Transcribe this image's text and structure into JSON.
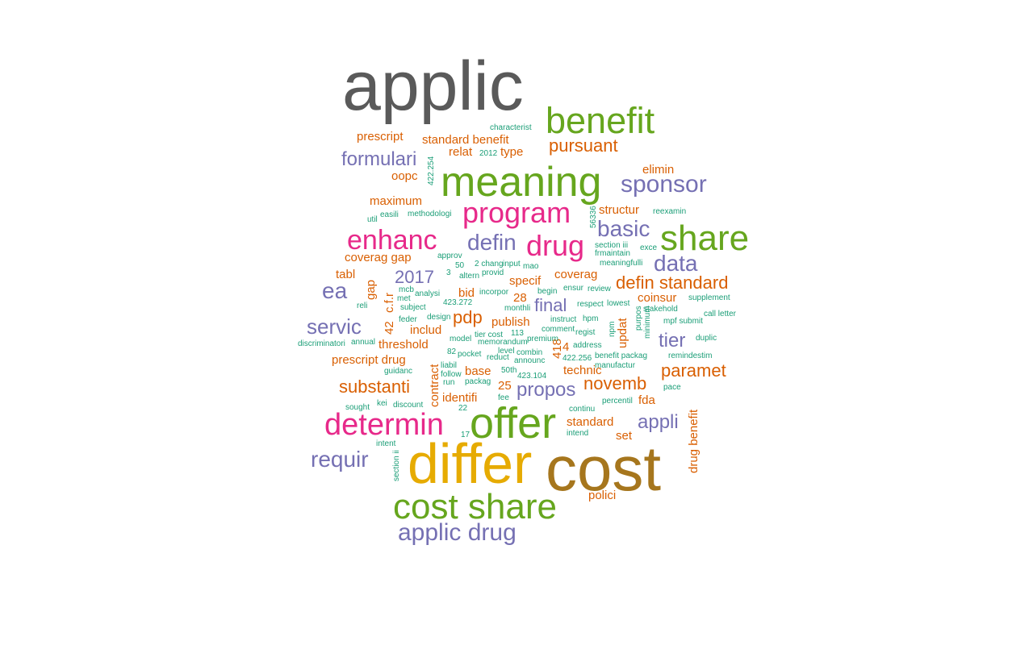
{
  "chart_data": {
    "type": "wordcloud",
    "palette": {
      "gray": "#5a5a5a",
      "olive": "#a6761d",
      "gold": "#e6ab02",
      "green": "#66a61e",
      "pink": "#e7298a",
      "purple": "#7570b3",
      "orange": "#d95f02",
      "teal": "#1b9e77"
    },
    "words": [
      {
        "text": "applic",
        "color": "gray",
        "weight": 96
      },
      {
        "text": "cost",
        "color": "olive",
        "weight": 90
      },
      {
        "text": "differ",
        "color": "gold",
        "weight": 86
      },
      {
        "text": "offer",
        "color": "green",
        "weight": 64
      },
      {
        "text": "meaning",
        "color": "green",
        "weight": 62
      },
      {
        "text": "cost share",
        "color": "green",
        "weight": 52
      },
      {
        "text": "benefit",
        "color": "green",
        "weight": 50
      },
      {
        "text": "share",
        "color": "green",
        "weight": 50
      },
      {
        "text": "determin",
        "color": "pink",
        "weight": 42
      },
      {
        "text": "program",
        "color": "pink",
        "weight": 40
      },
      {
        "text": "enhanc",
        "color": "pink",
        "weight": 38
      },
      {
        "text": "drug",
        "color": "pink",
        "weight": 38
      },
      {
        "text": "sponsor",
        "color": "purple",
        "weight": 32
      },
      {
        "text": "applic drug",
        "color": "purple",
        "weight": 30
      },
      {
        "text": "basic",
        "color": "purple",
        "weight": 30
      },
      {
        "text": "defin",
        "color": "purple",
        "weight": 30
      },
      {
        "text": "requir",
        "color": "purple",
        "weight": 30
      },
      {
        "text": "data",
        "color": "purple",
        "weight": 30
      },
      {
        "text": "servic",
        "color": "purple",
        "weight": 28
      },
      {
        "text": "ea",
        "color": "purple",
        "weight": 28
      },
      {
        "text": "formulari",
        "color": "purple",
        "weight": 26
      },
      {
        "text": "tier",
        "color": "purple",
        "weight": 26
      },
      {
        "text": "appli",
        "color": "purple",
        "weight": 26
      },
      {
        "text": "final",
        "color": "purple",
        "weight": 24
      },
      {
        "text": "propos",
        "color": "purple",
        "weight": 24
      },
      {
        "text": "2017",
        "color": "purple",
        "weight": 24
      },
      {
        "text": "defin standard",
        "color": "orange",
        "weight": 24
      },
      {
        "text": "substanti",
        "color": "orange",
        "weight": 24
      },
      {
        "text": "novemb",
        "color": "orange",
        "weight": 24
      },
      {
        "text": "paramet",
        "color": "orange",
        "weight": 24
      },
      {
        "text": "pursuant",
        "color": "orange",
        "weight": 22
      },
      {
        "text": "pdp",
        "color": "orange",
        "weight": 22
      },
      {
        "text": "prescript",
        "color": "orange",
        "weight": 16
      },
      {
        "text": "standard benefit",
        "color": "orange",
        "weight": 16
      },
      {
        "text": "relat",
        "color": "orange",
        "weight": 16
      },
      {
        "text": "type",
        "color": "orange",
        "weight": 16
      },
      {
        "text": "elimin",
        "color": "orange",
        "weight": 16
      },
      {
        "text": "oopc",
        "color": "orange",
        "weight": 16
      },
      {
        "text": "maximum",
        "color": "orange",
        "weight": 16
      },
      {
        "text": "structur",
        "color": "orange",
        "weight": 16
      },
      {
        "text": "coverag gap",
        "color": "orange",
        "weight": 16
      },
      {
        "text": "tabl",
        "color": "orange",
        "weight": 16
      },
      {
        "text": "specif",
        "color": "orange",
        "weight": 16
      },
      {
        "text": "coverag",
        "color": "orange",
        "weight": 16
      },
      {
        "text": "bid",
        "color": "orange",
        "weight": 16
      },
      {
        "text": "28",
        "color": "orange",
        "weight": 16
      },
      {
        "text": "coinsur",
        "color": "orange",
        "weight": 16
      },
      {
        "text": "publish",
        "color": "orange",
        "weight": 16
      },
      {
        "text": "includ",
        "color": "orange",
        "weight": 16
      },
      {
        "text": "threshold",
        "color": "orange",
        "weight": 16
      },
      {
        "text": "prescript drug",
        "color": "orange",
        "weight": 16
      },
      {
        "text": "base",
        "color": "orange",
        "weight": 16
      },
      {
        "text": "technic",
        "color": "orange",
        "weight": 16
      },
      {
        "text": "identifi",
        "color": "orange",
        "weight": 16
      },
      {
        "text": "fda",
        "color": "orange",
        "weight": 16
      },
      {
        "text": "standard",
        "color": "orange",
        "weight": 16
      },
      {
        "text": "set",
        "color": "orange",
        "weight": 16
      },
      {
        "text": "polici",
        "color": "orange",
        "weight": 16
      },
      {
        "text": "25",
        "color": "orange",
        "weight": 16
      },
      {
        "text": "4",
        "color": "orange",
        "weight": 16
      },
      {
        "text": "gap",
        "color": "orange",
        "weight": 16
      },
      {
        "text": "c.f.r",
        "color": "orange",
        "weight": 16
      },
      {
        "text": "42",
        "color": "orange",
        "weight": 16
      },
      {
        "text": "418",
        "color": "orange",
        "weight": 16
      },
      {
        "text": "contract",
        "color": "orange",
        "weight": 16
      },
      {
        "text": "updat",
        "color": "orange",
        "weight": 16
      },
      {
        "text": "drug benefit",
        "color": "orange",
        "weight": 16
      },
      {
        "text": "characterist",
        "color": "teal",
        "weight": 8
      },
      {
        "text": "2012",
        "color": "teal",
        "weight": 8
      },
      {
        "text": "422.254",
        "color": "teal",
        "weight": 8
      },
      {
        "text": "util",
        "color": "teal",
        "weight": 8
      },
      {
        "text": "easili",
        "color": "teal",
        "weight": 8
      },
      {
        "text": "methodologi",
        "color": "teal",
        "weight": 8
      },
      {
        "text": "56336",
        "color": "teal",
        "weight": 8
      },
      {
        "text": "reexamin",
        "color": "teal",
        "weight": 8
      },
      {
        "text": "approv",
        "color": "teal",
        "weight": 8
      },
      {
        "text": "50",
        "color": "teal",
        "weight": 8
      },
      {
        "text": "2 chang",
        "color": "teal",
        "weight": 8
      },
      {
        "text": "input",
        "color": "teal",
        "weight": 8
      },
      {
        "text": "mao",
        "color": "teal",
        "weight": 8
      },
      {
        "text": "section iii",
        "color": "teal",
        "weight": 8
      },
      {
        "text": "frmaintain",
        "color": "teal",
        "weight": 8
      },
      {
        "text": "exce",
        "color": "teal",
        "weight": 8
      },
      {
        "text": "meaningfulli",
        "color": "teal",
        "weight": 8
      },
      {
        "text": "3",
        "color": "teal",
        "weight": 8
      },
      {
        "text": "altern",
        "color": "teal",
        "weight": 8
      },
      {
        "text": "provid",
        "color": "teal",
        "weight": 8
      },
      {
        "text": "mcb",
        "color": "teal",
        "weight": 8
      },
      {
        "text": "met",
        "color": "teal",
        "weight": 8
      },
      {
        "text": "analysi",
        "color": "teal",
        "weight": 8
      },
      {
        "text": "incorpor",
        "color": "teal",
        "weight": 8
      },
      {
        "text": "begin",
        "color": "teal",
        "weight": 8
      },
      {
        "text": "ensur",
        "color": "teal",
        "weight": 8
      },
      {
        "text": "review",
        "color": "teal",
        "weight": 8
      },
      {
        "text": "supplement",
        "color": "teal",
        "weight": 8
      },
      {
        "text": "reli",
        "color": "teal",
        "weight": 8
      },
      {
        "text": "subject",
        "color": "teal",
        "weight": 8
      },
      {
        "text": "423.272",
        "color": "teal",
        "weight": 8
      },
      {
        "text": "monthli",
        "color": "teal",
        "weight": 8
      },
      {
        "text": "respect",
        "color": "teal",
        "weight": 8
      },
      {
        "text": "lowest",
        "color": "teal",
        "weight": 8
      },
      {
        "text": "stakehold",
        "color": "teal",
        "weight": 8
      },
      {
        "text": "call letter",
        "color": "teal",
        "weight": 8
      },
      {
        "text": "feder",
        "color": "teal",
        "weight": 8
      },
      {
        "text": "design",
        "color": "teal",
        "weight": 8
      },
      {
        "text": "instruct",
        "color": "teal",
        "weight": 8
      },
      {
        "text": "hpm",
        "color": "teal",
        "weight": 8
      },
      {
        "text": "purpos",
        "color": "teal",
        "weight": 8
      },
      {
        "text": "mpf submit",
        "color": "teal",
        "weight": 8
      },
      {
        "text": "discriminatori",
        "color": "teal",
        "weight": 8
      },
      {
        "text": "annual",
        "color": "teal",
        "weight": 8
      },
      {
        "text": "tier cost",
        "color": "teal",
        "weight": 8
      },
      {
        "text": "comment",
        "color": "teal",
        "weight": 8
      },
      {
        "text": "regist",
        "color": "teal",
        "weight": 8
      },
      {
        "text": "memorandum",
        "color": "teal",
        "weight": 8
      },
      {
        "text": "npm",
        "color": "teal",
        "weight": 8
      },
      {
        "text": "minimum",
        "color": "teal",
        "weight": 8
      },
      {
        "text": "duplic",
        "color": "teal",
        "weight": 8
      },
      {
        "text": "level",
        "color": "teal",
        "weight": 8
      },
      {
        "text": "address",
        "color": "teal",
        "weight": 8
      },
      {
        "text": "combin",
        "color": "teal",
        "weight": 8
      },
      {
        "text": "82",
        "color": "teal",
        "weight": 8
      },
      {
        "text": "pocket",
        "color": "teal",
        "weight": 8
      },
      {
        "text": "reduct",
        "color": "teal",
        "weight": 8
      },
      {
        "text": "benefit packag",
        "color": "teal",
        "weight": 8
      },
      {
        "text": "remindestim",
        "color": "teal",
        "weight": 8
      },
      {
        "text": "liabil",
        "color": "teal",
        "weight": 8
      },
      {
        "text": "announc",
        "color": "teal",
        "weight": 8
      },
      {
        "text": "422.256",
        "color": "teal",
        "weight": 8
      },
      {
        "text": "manufactur",
        "color": "teal",
        "weight": 8
      },
      {
        "text": "guidanc",
        "color": "teal",
        "weight": 8
      },
      {
        "text": "follow",
        "color": "teal",
        "weight": 8
      },
      {
        "text": "50th",
        "color": "teal",
        "weight": 8
      },
      {
        "text": "423.104",
        "color": "teal",
        "weight": 8
      },
      {
        "text": "run",
        "color": "teal",
        "weight": 8
      },
      {
        "text": "packag",
        "color": "teal",
        "weight": 8
      },
      {
        "text": "kei",
        "color": "teal",
        "weight": 8
      },
      {
        "text": "discount",
        "color": "teal",
        "weight": 8
      },
      {
        "text": "fee",
        "color": "teal",
        "weight": 8
      },
      {
        "text": "percentil",
        "color": "teal",
        "weight": 8
      },
      {
        "text": "pace",
        "color": "teal",
        "weight": 8
      },
      {
        "text": "sought",
        "color": "teal",
        "weight": 8
      },
      {
        "text": "22",
        "color": "teal",
        "weight": 8
      },
      {
        "text": "continu",
        "color": "teal",
        "weight": 8
      },
      {
        "text": "17",
        "color": "teal",
        "weight": 8
      },
      {
        "text": "intend",
        "color": "teal",
        "weight": 8
      },
      {
        "text": "intent",
        "color": "teal",
        "weight": 8
      },
      {
        "text": "section ii",
        "color": "teal",
        "weight": 8
      },
      {
        "text": "premium",
        "color": "teal",
        "weight": 8
      },
      {
        "text": "model",
        "color": "teal",
        "weight": 8
      },
      {
        "text": "113",
        "color": "teal",
        "weight": 8
      }
    ]
  }
}
